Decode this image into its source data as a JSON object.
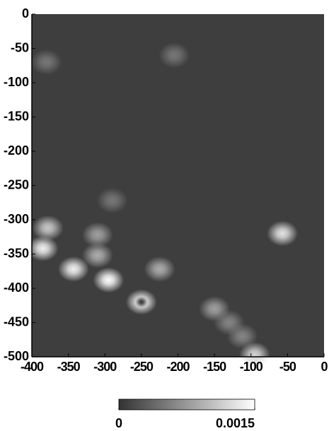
{
  "chart_data": {
    "type": "heatmap",
    "x": [
      -385,
      -378,
      -343,
      -295,
      -250,
      -310,
      -310,
      -225,
      -57,
      -150,
      -95,
      -380,
      -205,
      -290,
      -130,
      -112,
      -250
    ],
    "y": [
      -342,
      -312,
      -372,
      -388,
      -420,
      -352,
      -322,
      -372,
      -320,
      -430,
      -497,
      -70,
      -60,
      -272,
      -450,
      -470,
      -420
    ],
    "values": [
      0.0014,
      0.0011,
      0.0014,
      0.0015,
      0.0015,
      0.0009,
      0.0008,
      0.0009,
      0.0013,
      0.0008,
      0.0012,
      0.0005,
      0.0005,
      0.0005,
      0.0006,
      0.0006,
      0
    ],
    "xlim": [
      -400,
      0
    ],
    "xticks": [
      -400,
      -350,
      -300,
      -250,
      -200,
      -150,
      -100,
      -50,
      0
    ],
    "ylim": [
      -500,
      0
    ],
    "yticks": [
      0,
      -50,
      -100,
      -150,
      -200,
      -250,
      -300,
      -350,
      -400,
      -450,
      -500
    ],
    "colormap": [
      "#333333",
      "#ffffff"
    ],
    "clim": [
      0,
      0.0015
    ],
    "cticks": [
      0,
      0.0015
    ]
  }
}
